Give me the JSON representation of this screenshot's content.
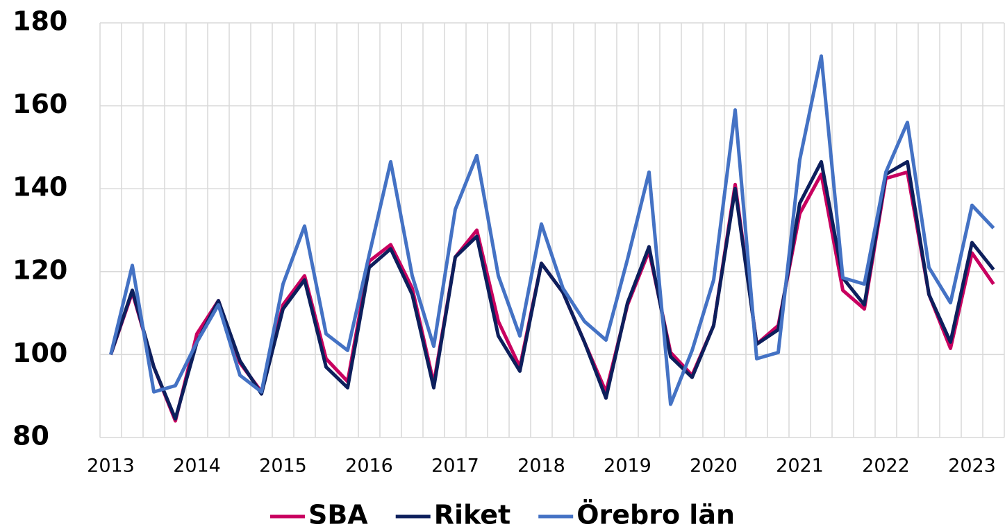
{
  "chart_data": {
    "type": "line",
    "categories": [
      "2013",
      null,
      null,
      null,
      "2014",
      null,
      null,
      null,
      "2015",
      null,
      null,
      null,
      "2016",
      null,
      null,
      null,
      "2017",
      null,
      null,
      null,
      "2018",
      null,
      null,
      null,
      "2019",
      null,
      null,
      null,
      "2020",
      null,
      null,
      null,
      "2021",
      null,
      null,
      null,
      "2022",
      null,
      null,
      null,
      "2023",
      null
    ],
    "series": [
      {
        "name": "SBA",
        "color": "#c8005f",
        "values": [
          100,
          115,
          97,
          84,
          105,
          113,
          98,
          91,
          112,
          119,
          99,
          93.5,
          122.5,
          126.5,
          116,
          93,
          123.5,
          130,
          108,
          97,
          122,
          115,
          103,
          91,
          112,
          125,
          100.5,
          95,
          107,
          141,
          102.5,
          107,
          134,
          143.5,
          115.5,
          111,
          142.5,
          144,
          114.5,
          101.5,
          124.5,
          117
        ]
      },
      {
        "name": "Riket",
        "color": "#0d1f5c",
        "values": [
          100,
          115.5,
          97,
          84.5,
          103,
          113,
          98.5,
          90.5,
          111,
          118,
          97,
          92,
          121,
          125.5,
          114.5,
          92,
          123.5,
          128.5,
          104.5,
          96,
          122,
          115,
          103,
          89.5,
          112.5,
          126,
          99.5,
          94.5,
          107,
          140,
          102.5,
          106,
          136.5,
          146.5,
          118.5,
          112,
          143.5,
          146.5,
          114.5,
          103,
          127,
          120.5
        ]
      },
      {
        "name": "Örebro län",
        "color": "#4472c4",
        "values": [
          100,
          121.5,
          91,
          92.5,
          103,
          112,
          95,
          91,
          117,
          131,
          105,
          101,
          124,
          146.5,
          119,
          102,
          135,
          148,
          119,
          104.5,
          131.5,
          116,
          108,
          103.5,
          123,
          144,
          88,
          101,
          118,
          159,
          99,
          100.5,
          147,
          172,
          118.5,
          117,
          144,
          156,
          121,
          112.5,
          136,
          130.5
        ]
      }
    ],
    "ylim": [
      80,
      180
    ],
    "yticks": [
      80,
      100,
      120,
      140,
      160,
      180
    ],
    "grid": true,
    "legend": "bottom"
  }
}
